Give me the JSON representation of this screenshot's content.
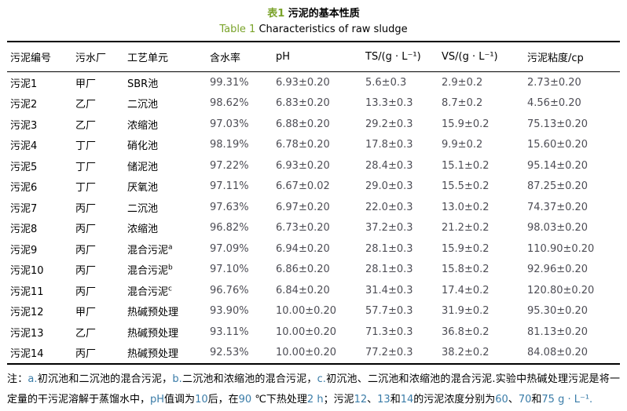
{
  "caption": {
    "zh_tag": "表1",
    "zh_title": "污泥的基本性质",
    "en_tag": "Table 1",
    "en_title": "Characteristics of raw sludge"
  },
  "colors": {
    "caption_accent": "#7aa32a",
    "body_text": "#000000",
    "numeric_text": "#4d4d55",
    "note_latin": "#3a7ca8",
    "table_border": "#000000"
  },
  "table": {
    "columns": [
      "污泥编号",
      "污水厂",
      "工艺单元",
      "含水率",
      "pH",
      "TS/(g · L⁻¹)",
      "VS/(g · L⁻¹)",
      "污泥粘度/cp"
    ],
    "rows": [
      {
        "id": "污泥1",
        "plant": "甲厂",
        "unit": "SBR池",
        "sup": "",
        "water": "99.31%",
        "ph": "6.93±0.20",
        "ts": "5.6±0.3",
        "vs": "2.9±0.2",
        "viscosity": "2.73±0.20"
      },
      {
        "id": "污泥2",
        "plant": "乙厂",
        "unit": "二沉池",
        "sup": "",
        "water": "98.62%",
        "ph": "6.83±0.20",
        "ts": "13.3±0.3",
        "vs": "8.7±0.2",
        "viscosity": "4.56±0.20"
      },
      {
        "id": "污泥3",
        "plant": "乙厂",
        "unit": "浓缩池",
        "sup": "",
        "water": "97.03%",
        "ph": "6.88±0.20",
        "ts": "29.2±0.3",
        "vs": "15.9±0.2",
        "viscosity": "75.13±0.20"
      },
      {
        "id": "污泥4",
        "plant": "丁厂",
        "unit": "硝化池",
        "sup": "",
        "water": "98.19%",
        "ph": "6.78±0.20",
        "ts": "17.8±0.3",
        "vs": "9.9±0.2",
        "viscosity": "15.60±0.20"
      },
      {
        "id": "污泥5",
        "plant": "丁厂",
        "unit": "储泥池",
        "sup": "",
        "water": "97.22%",
        "ph": "6.93±0.20",
        "ts": "28.4±0.3",
        "vs": "15.1±0.2",
        "viscosity": "95.14±0.20"
      },
      {
        "id": "污泥6",
        "plant": "丁厂",
        "unit": "厌氧池",
        "sup": "",
        "water": "97.11%",
        "ph": "6.67±0.02",
        "ts": "29.0±0.3",
        "vs": "15.5±0.2",
        "viscosity": "87.25±0.20"
      },
      {
        "id": "污泥7",
        "plant": "丙厂",
        "unit": "二沉池",
        "sup": "",
        "water": "97.63%",
        "ph": "6.97±0.20",
        "ts": "22.0±0.3",
        "vs": "13.0±0.2",
        "viscosity": "74.37±0.20"
      },
      {
        "id": "污泥8",
        "plant": "丙厂",
        "unit": "浓缩池",
        "sup": "",
        "water": "96.82%",
        "ph": "6.73±0.20",
        "ts": "37.2±0.3",
        "vs": "21.2±0.2",
        "viscosity": "98.03±0.20"
      },
      {
        "id": "污泥9",
        "plant": "丙厂",
        "unit": "混合污泥",
        "sup": "a",
        "water": "97.09%",
        "ph": "6.94±0.20",
        "ts": "28.1±0.3",
        "vs": "15.9±0.2",
        "viscosity": "110.90±0.20"
      },
      {
        "id": "污泥10",
        "plant": "丙厂",
        "unit": "混合污泥",
        "sup": "b",
        "water": "97.10%",
        "ph": "6.86±0.20",
        "ts": "28.1±0.3",
        "vs": "15.8±0.2",
        "viscosity": "92.96±0.20"
      },
      {
        "id": "污泥11",
        "plant": "丙厂",
        "unit": "混合污泥",
        "sup": "c",
        "water": "96.76%",
        "ph": "6.84±0.20",
        "ts": "31.4±0.3",
        "vs": "17.4±0.2",
        "viscosity": "120.80±0.20"
      },
      {
        "id": "污泥12",
        "plant": "甲厂",
        "unit": "热碱预处理",
        "sup": "",
        "water": "93.90%",
        "ph": "10.00±0.20",
        "ts": "57.7±0.3",
        "vs": "31.9±0.2",
        "viscosity": "95.30±0.20"
      },
      {
        "id": "污泥13",
        "plant": "乙厂",
        "unit": "热碱预处理",
        "sup": "",
        "water": "93.11%",
        "ph": "10.00±0.20",
        "ts": "71.3±0.3",
        "vs": "36.8±0.2",
        "viscosity": "81.13±0.20"
      },
      {
        "id": "污泥14",
        "plant": "丙厂",
        "unit": "热碱预处理",
        "sup": "",
        "water": "92.53%",
        "ph": "10.00±0.20",
        "ts": "77.2±0.3",
        "vs": "38.2±0.2",
        "viscosity": "84.08±0.20"
      }
    ]
  },
  "note": {
    "segments": [
      {
        "t": "注：",
        "c": "zh"
      },
      {
        "t": "a.",
        "c": "latin"
      },
      {
        "t": "初沉池和二沉池的混合污泥，",
        "c": "zh"
      },
      {
        "t": "b.",
        "c": "latin"
      },
      {
        "t": "二沉池和浓缩池的混合污泥，",
        "c": "zh"
      },
      {
        "t": "c.",
        "c": "latin"
      },
      {
        "t": "初沉池、二沉池和浓缩池的混合污泥.实验中热碱处理污泥是将一定量的干污泥溶解于蒸馏水中，",
        "c": "zh"
      },
      {
        "t": "pH",
        "c": "latin"
      },
      {
        "t": "值调为",
        "c": "zh"
      },
      {
        "t": "10",
        "c": "latin"
      },
      {
        "t": "后，在",
        "c": "zh"
      },
      {
        "t": "90 ",
        "c": "latin"
      },
      {
        "t": "℃下热处理",
        "c": "zh"
      },
      {
        "t": "2 h",
        "c": "latin"
      },
      {
        "t": "；污泥",
        "c": "zh"
      },
      {
        "t": "12",
        "c": "latin"
      },
      {
        "t": "、",
        "c": "zh"
      },
      {
        "t": "13",
        "c": "latin"
      },
      {
        "t": "和",
        "c": "zh"
      },
      {
        "t": "14",
        "c": "latin"
      },
      {
        "t": "的污泥浓度分别为",
        "c": "zh"
      },
      {
        "t": "60",
        "c": "latin"
      },
      {
        "t": "、",
        "c": "zh"
      },
      {
        "t": "70",
        "c": "latin"
      },
      {
        "t": "和",
        "c": "zh"
      },
      {
        "t": "75 g · L⁻¹.",
        "c": "latin"
      }
    ]
  }
}
